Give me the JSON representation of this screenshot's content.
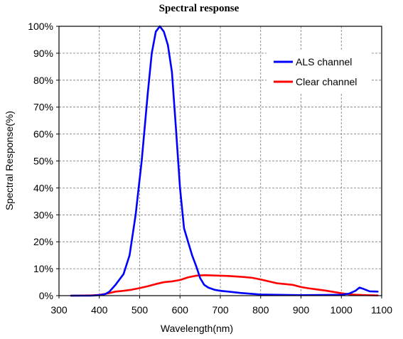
{
  "chart_data": {
    "type": "line",
    "title": "Spectral response",
    "xlabel": "Wavelength(nm)",
    "ylabel": "Spectral Response(%)",
    "xlim": [
      300,
      1100
    ],
    "ylim": [
      0,
      100
    ],
    "x_ticks": [
      300,
      400,
      500,
      600,
      700,
      800,
      900,
      1000,
      1100
    ],
    "y_ticks": [
      0,
      10,
      20,
      30,
      40,
      50,
      60,
      70,
      80,
      90,
      100
    ],
    "y_tick_suffix": "%",
    "grid": true,
    "legend_position": "top-right",
    "series": [
      {
        "name": "ALS channel",
        "color": "#0000ff",
        "points": [
          [
            330,
            0
          ],
          [
            380,
            0
          ],
          [
            400,
            0.2
          ],
          [
            415,
            0.6
          ],
          [
            425,
            1.5
          ],
          [
            440,
            4
          ],
          [
            460,
            8
          ],
          [
            475,
            15
          ],
          [
            490,
            30
          ],
          [
            505,
            50
          ],
          [
            520,
            75
          ],
          [
            530,
            90
          ],
          [
            540,
            98
          ],
          [
            550,
            100
          ],
          [
            560,
            98
          ],
          [
            570,
            93
          ],
          [
            580,
            83
          ],
          [
            590,
            62
          ],
          [
            600,
            40
          ],
          [
            610,
            25
          ],
          [
            620,
            20
          ],
          [
            630,
            15
          ],
          [
            640,
            11
          ],
          [
            650,
            6.5
          ],
          [
            660,
            4
          ],
          [
            670,
            3
          ],
          [
            685,
            2.2
          ],
          [
            700,
            1.8
          ],
          [
            720,
            1.5
          ],
          [
            750,
            1
          ],
          [
            800,
            0.4
          ],
          [
            900,
            0.2
          ],
          [
            1000,
            0.3
          ],
          [
            1020,
            0.8
          ],
          [
            1035,
            1.8
          ],
          [
            1045,
            3
          ],
          [
            1055,
            2.5
          ],
          [
            1070,
            1.6
          ],
          [
            1090,
            1.5
          ]
        ]
      },
      {
        "name": "Clear channel",
        "color": "#ff0000",
        "points": [
          [
            330,
            0
          ],
          [
            380,
            0.1
          ],
          [
            400,
            0.3
          ],
          [
            420,
            0.8
          ],
          [
            440,
            1.5
          ],
          [
            460,
            1.8
          ],
          [
            480,
            2.2
          ],
          [
            500,
            2.8
          ],
          [
            520,
            3.5
          ],
          [
            540,
            4.3
          ],
          [
            560,
            5
          ],
          [
            580,
            5.3
          ],
          [
            600,
            5.8
          ],
          [
            620,
            6.8
          ],
          [
            640,
            7.4
          ],
          [
            660,
            7.6
          ],
          [
            680,
            7.5
          ],
          [
            700,
            7.4
          ],
          [
            720,
            7.3
          ],
          [
            740,
            7.1
          ],
          [
            760,
            6.9
          ],
          [
            780,
            6.6
          ],
          [
            800,
            6
          ],
          [
            820,
            5.3
          ],
          [
            840,
            4.6
          ],
          [
            860,
            4.3
          ],
          [
            880,
            4
          ],
          [
            900,
            3.2
          ],
          [
            920,
            2.7
          ],
          [
            940,
            2.3
          ],
          [
            960,
            1.9
          ],
          [
            980,
            1.4
          ],
          [
            1000,
            0.9
          ],
          [
            1020,
            0.5
          ],
          [
            1040,
            0.3
          ],
          [
            1060,
            0.2
          ],
          [
            1090,
            0.1
          ]
        ]
      }
    ]
  }
}
